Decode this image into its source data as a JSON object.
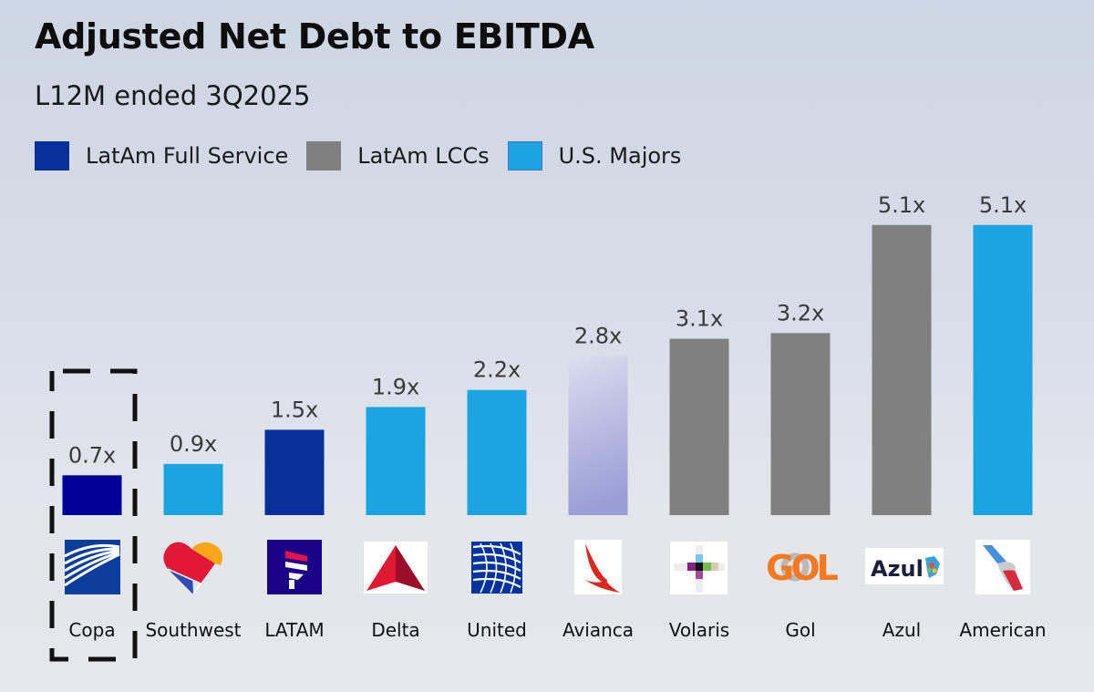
{
  "title": "Adjusted Net Debt to EBITDA",
  "subtitle": "L12M ended 3Q2025",
  "legend": [
    {
      "label": "LatAm Full Service",
      "color": "#0a2e9a"
    },
    {
      "label": "LatAm LCCs",
      "color": "#808080"
    },
    {
      "label": "U.S. Majors",
      "color": "#1ba4e0"
    }
  ],
  "highlight": "Copa",
  "chart_data": {
    "type": "bar",
    "title": "Adjusted Net Debt to EBITDA",
    "subtitle": "L12M ended 3Q2025",
    "xlabel": "",
    "ylabel": "",
    "ylim": [
      0,
      5.1
    ],
    "grid": false,
    "legend_position": "top-left",
    "categories": [
      "Copa",
      "Southwest",
      "LATAM",
      "Delta",
      "United",
      "Avianca",
      "Volaris",
      "Gol",
      "Azul",
      "American"
    ],
    "values": [
      0.7,
      0.9,
      1.5,
      1.9,
      2.2,
      2.8,
      3.1,
      3.2,
      5.1,
      5.1
    ],
    "data_labels": [
      "0.7x",
      "0.9x",
      "1.5x",
      "1.9x",
      "2.2x",
      "2.8x",
      "3.1x",
      "3.2x",
      "5.1x",
      "5.1x"
    ],
    "groups": [
      "LatAm Full Service",
      "U.S. Majors",
      "LatAm Full Service",
      "U.S. Majors",
      "U.S. Majors",
      "LatAm Full Service",
      "LatAm LCCs",
      "LatAm LCCs",
      "LatAm LCCs",
      "U.S. Majors"
    ],
    "bar_colors": [
      "#000099",
      "#1ba4e0",
      "#0a2e9a",
      "#1ba4e0",
      "#1ba4e0",
      "gradient-lavender",
      "#808080",
      "#808080",
      "#808080",
      "#1ba4e0"
    ],
    "logos": [
      "copa-logo-icon",
      "southwest-heart-logo-icon",
      "latam-logo-icon",
      "delta-triangle-logo-icon",
      "united-globe-logo-icon",
      "avianca-logo-icon",
      "volaris-logo-icon",
      "gol-logo-icon",
      "azul-logo-icon",
      "american-logo-icon"
    ],
    "series": [
      {
        "name": "Adjusted Net Debt / EBITDA",
        "values": [
          0.7,
          0.9,
          1.5,
          1.9,
          2.2,
          2.8,
          3.1,
          3.2,
          5.1,
          5.1
        ]
      }
    ]
  }
}
